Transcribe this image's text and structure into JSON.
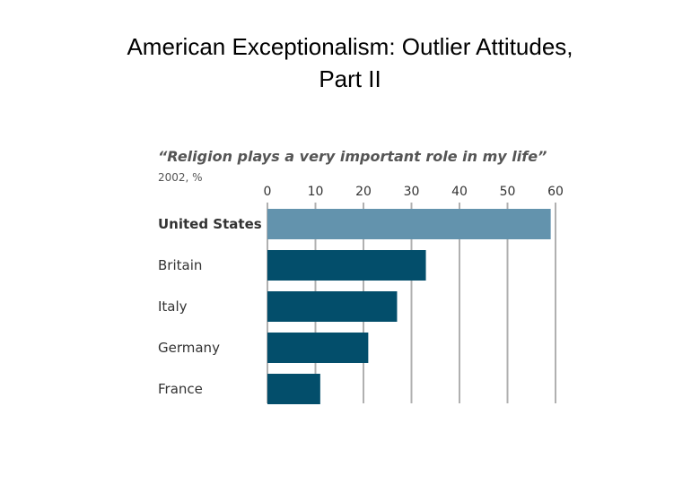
{
  "slide": {
    "title_line1": "American Exceptionalism: Outlier Attitudes,",
    "title_line2": "Part II"
  },
  "chart_data": {
    "type": "bar",
    "orientation": "horizontal",
    "title": "“Religion plays a very important role in my life”",
    "subtitle": "2002, %",
    "categories": [
      "United States",
      "Britain",
      "Italy",
      "Germany",
      "France"
    ],
    "values": [
      59,
      33,
      27,
      21,
      11
    ],
    "highlight_category": "United States",
    "xlim": [
      0,
      60
    ],
    "xticks": [
      0,
      10,
      20,
      30,
      40,
      50,
      60
    ],
    "xtick_labels": [
      "0",
      "10",
      "20",
      "30",
      "40",
      "50",
      "60"
    ],
    "grid": true,
    "tick_position": "top",
    "colors": {
      "highlight": "#6393ad",
      "bar": "#034e6b",
      "grid": "#b0b0b0",
      "text": "#333333",
      "title_text": "#555555"
    }
  }
}
